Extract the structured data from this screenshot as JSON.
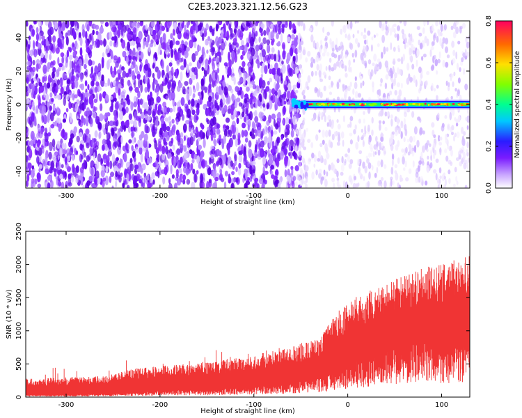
{
  "chart_data": [
    {
      "type": "heatmap",
      "title": "C2E3.2023.321.12.56.G23",
      "xlabel": "Height of straight line (km)",
      "ylabel": "Frequency (Hz)",
      "xlim": [
        -343,
        130
      ],
      "ylim": [
        -50,
        50
      ],
      "xticks": [
        -300,
        -200,
        -100,
        0,
        100
      ],
      "yticks": [
        40,
        20,
        0,
        -20,
        -40
      ],
      "colorbar": {
        "label": "Normalized spectral amplitude",
        "range": [
          0,
          0.8
        ],
        "ticks": [
          "0.0",
          "0.2",
          "0.4",
          "0.6",
          "0.8"
        ]
      },
      "features": {
        "noise_band_x_range": [
          -343,
          -55
        ],
        "signal_onset_x": -60,
        "signal_frequency_hz": 0,
        "faint_noise_x_range": [
          -55,
          130
        ]
      }
    },
    {
      "type": "area",
      "xlabel": "Height of straight line (km)",
      "ylabel": "SNR (10 * v/v)",
      "xlim": [
        -343,
        130
      ],
      "ylim": [
        0,
        2500
      ],
      "xticks": [
        -300,
        -200,
        -100,
        0,
        100
      ],
      "yticks": [
        0,
        500,
        1000,
        1500,
        2000,
        2500
      ],
      "series_color": "#f03434",
      "envelope": {
        "x": [
          -343,
          -300,
          -260,
          -230,
          -200,
          -170,
          -140,
          -110,
          -80,
          -50,
          -30,
          -20,
          -10,
          0,
          20,
          40,
          60,
          80,
          100,
          120,
          130
        ],
        "upper": [
          280,
          300,
          320,
          420,
          470,
          500,
          560,
          600,
          680,
          800,
          900,
          1100,
          1300,
          1450,
          1600,
          1700,
          1850,
          1950,
          2000,
          2100,
          2150
        ],
        "lower": [
          30,
          30,
          40,
          60,
          80,
          90,
          100,
          120,
          150,
          200,
          250,
          300,
          350,
          400,
          500,
          600,
          650,
          700,
          700,
          700,
          700
        ]
      }
    }
  ]
}
